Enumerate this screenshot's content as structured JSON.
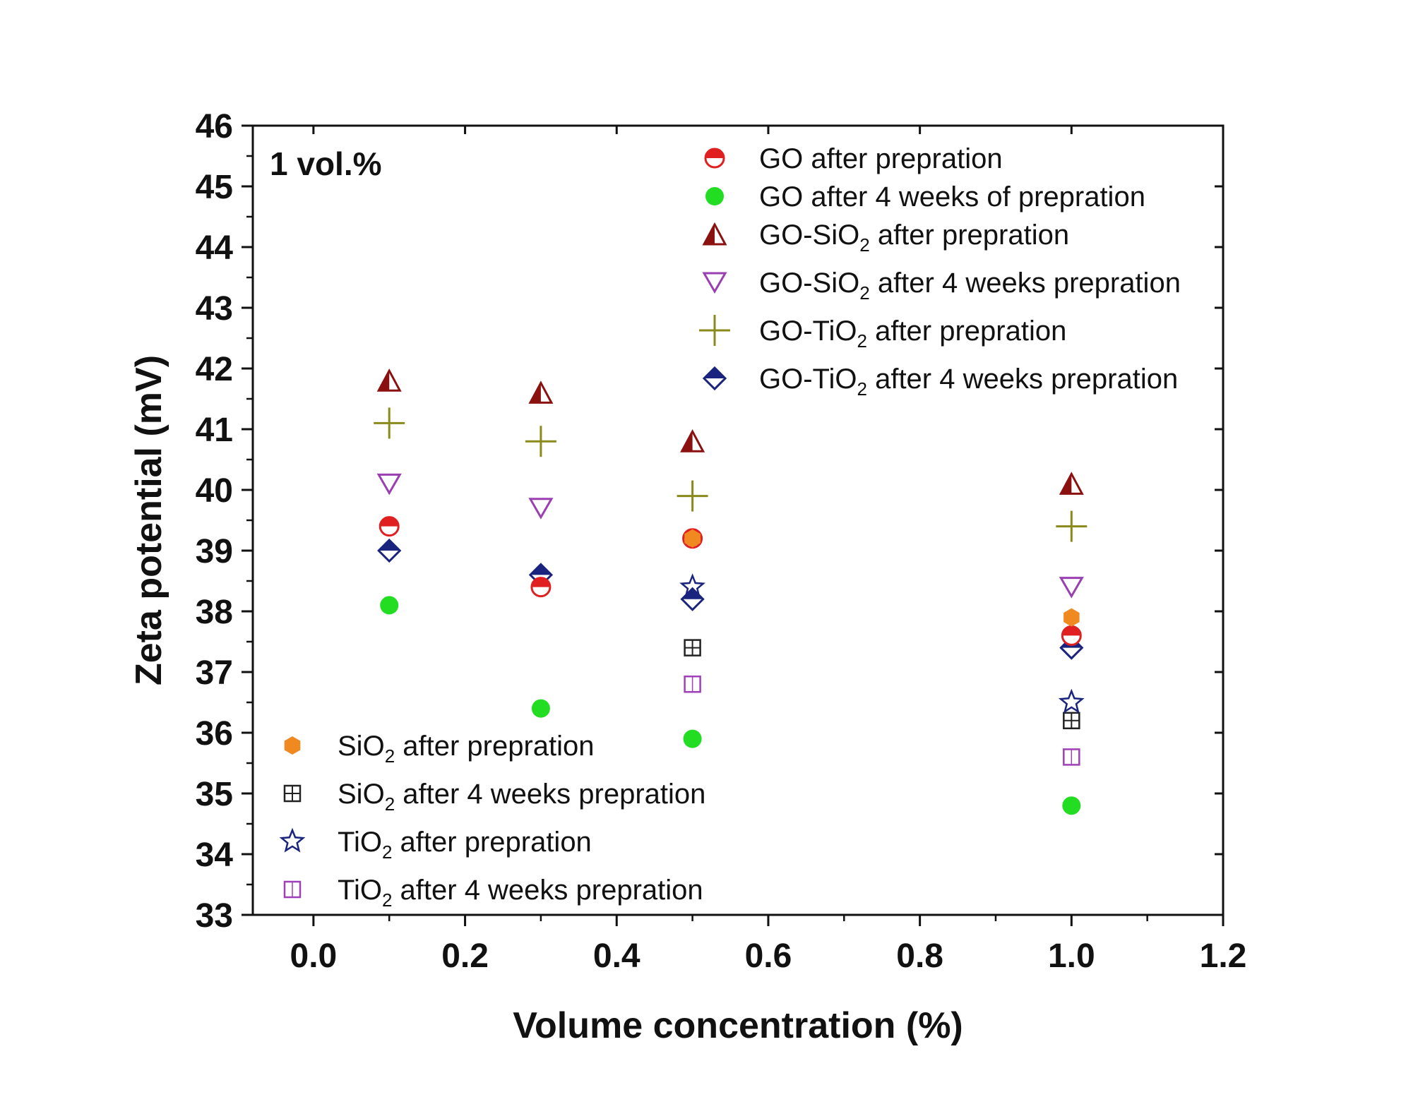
{
  "chart_data": {
    "type": "scatter",
    "title": "",
    "annotation": "1 vol.%",
    "xlabel": "Volume concentration (%)",
    "ylabel": "Zeta potential (mV)",
    "xlim": [
      -0.08,
      1.2
    ],
    "ylim": [
      33,
      46
    ],
    "xticks": [
      0.0,
      0.2,
      0.4,
      0.6,
      0.8,
      1.0,
      1.2
    ],
    "xtick_labels": [
      "0.0",
      "0.2",
      "0.4",
      "0.6",
      "0.8",
      "1.0",
      "1.2"
    ],
    "yticks": [
      33,
      34,
      35,
      36,
      37,
      38,
      39,
      40,
      41,
      42,
      43,
      44,
      45,
      46
    ],
    "ytick_labels": [
      "33",
      "34",
      "35",
      "36",
      "37",
      "38",
      "39",
      "40",
      "41",
      "42",
      "43",
      "44",
      "45",
      "46"
    ],
    "series": [
      {
        "id": "go-after",
        "name": "GO after prepration",
        "name_parts": [
          {
            "t": "GO after prepration"
          }
        ],
        "marker": "half-circle",
        "color": "#e02020",
        "legend_group": "top",
        "x": [
          0.1,
          0.3,
          0.5,
          1.0
        ],
        "y": [
          39.4,
          38.4,
          39.2,
          37.6
        ]
      },
      {
        "id": "go-4w",
        "name": "GO after 4 weeks of prepration",
        "name_parts": [
          {
            "t": "GO after 4 weeks of prepration"
          }
        ],
        "marker": "circle",
        "color": "#22dd22",
        "legend_group": "top",
        "x": [
          0.1,
          0.3,
          0.5,
          1.0
        ],
        "y": [
          38.1,
          36.4,
          35.9,
          34.8
        ]
      },
      {
        "id": "gosio2-after",
        "name": "GO-SiO2 after prepration",
        "name_parts": [
          {
            "t": "GO-SiO"
          },
          {
            "t": "2",
            "sub": true
          },
          {
            "t": " after prepration"
          }
        ],
        "marker": "half-triangle",
        "color": "#8b1010",
        "legend_group": "top",
        "x": [
          0.1,
          0.3,
          0.5,
          1.0
        ],
        "y": [
          41.8,
          41.6,
          40.8,
          40.1
        ]
      },
      {
        "id": "gosio2-4w",
        "name": "GO-SiO2 after 4 weeks prepration",
        "name_parts": [
          {
            "t": "GO-SiO"
          },
          {
            "t": "2",
            "sub": true
          },
          {
            "t": " after 4 weeks prepration"
          }
        ],
        "marker": "triangle-down-open",
        "color": "#9a3fb0",
        "legend_group": "top",
        "x": [
          0.1,
          0.3,
          1.0
        ],
        "y": [
          40.1,
          39.7,
          38.4
        ]
      },
      {
        "id": "gotio2-after",
        "name": "GO-TiO2 after prepration",
        "name_parts": [
          {
            "t": "GO-TiO"
          },
          {
            "t": "2",
            "sub": true
          },
          {
            "t": " after prepration"
          }
        ],
        "marker": "plus",
        "color": "#8a8a1a",
        "legend_group": "top",
        "x": [
          0.1,
          0.3,
          0.5,
          1.0
        ],
        "y": [
          41.1,
          40.8,
          39.9,
          39.4
        ]
      },
      {
        "id": "gotio2-4w",
        "name": "GO-TiO2 after 4 weeks prepration",
        "name_parts": [
          {
            "t": "GO-TiO"
          },
          {
            "t": "2",
            "sub": true
          },
          {
            "t": " after 4 weeks prepration"
          }
        ],
        "marker": "half-diamond",
        "color": "#1a237e",
        "legend_group": "top",
        "x": [
          0.1,
          0.3,
          0.5,
          1.0
        ],
        "y": [
          39.0,
          38.6,
          38.2,
          37.4
        ]
      },
      {
        "id": "sio2-after",
        "name": "SiO2 after prepration",
        "name_parts": [
          {
            "t": "SiO"
          },
          {
            "t": "2",
            "sub": true
          },
          {
            "t": " after prepration"
          }
        ],
        "marker": "hexagon",
        "color": "#f08a20",
        "legend_group": "bottom",
        "x": [
          0.5,
          1.0
        ],
        "y": [
          39.2,
          37.9
        ]
      },
      {
        "id": "sio2-4w",
        "name": "SiO2 after 4 weeks prepration",
        "name_parts": [
          {
            "t": "SiO"
          },
          {
            "t": "2",
            "sub": true
          },
          {
            "t": " after 4 weeks prepration"
          }
        ],
        "marker": "square-cross",
        "color": "#222222",
        "legend_group": "bottom",
        "x": [
          0.5,
          1.0
        ],
        "y": [
          37.4,
          36.2
        ]
      },
      {
        "id": "tio2-after",
        "name": "TiO2 after prepration",
        "name_parts": [
          {
            "t": "TiO"
          },
          {
            "t": "2",
            "sub": true
          },
          {
            "t": " after prepration"
          }
        ],
        "marker": "star-open",
        "color": "#1a237e",
        "legend_group": "bottom",
        "x": [
          0.5,
          1.0
        ],
        "y": [
          38.4,
          36.5
        ]
      },
      {
        "id": "tio2-4w",
        "name": "TiO2 after 4 weeks prepration",
        "name_parts": [
          {
            "t": "TiO"
          },
          {
            "t": "2",
            "sub": true
          },
          {
            "t": " after 4 weeks prepration"
          }
        ],
        "marker": "square-open",
        "color": "#a040b8",
        "legend_group": "bottom",
        "x": [
          0.5,
          1.0
        ],
        "y": [
          36.8,
          35.6
        ]
      }
    ],
    "legends": [
      {
        "placement": "top-right",
        "series_ids": [
          "go-after",
          "go-4w",
          "gosio2-after",
          "gosio2-4w",
          "gotio2-after",
          "gotio2-4w"
        ]
      },
      {
        "placement": "bottom-left",
        "series_ids": [
          "sio2-after",
          "sio2-4w",
          "tio2-after",
          "tio2-4w"
        ]
      }
    ]
  }
}
